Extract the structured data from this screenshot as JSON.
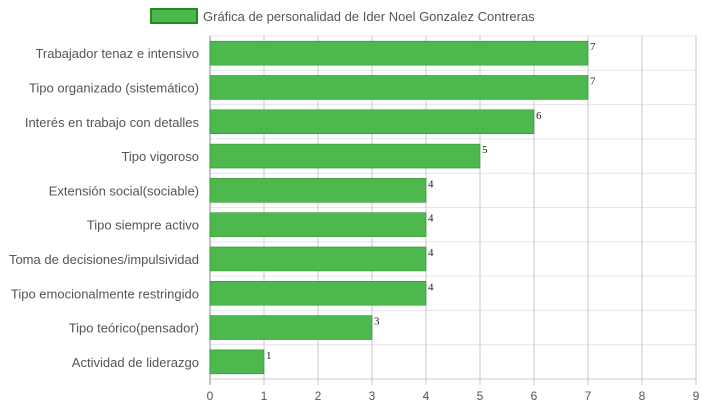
{
  "chart_data": {
    "type": "bar",
    "orientation": "horizontal",
    "categories": [
      "Trabajador tenaz e intensivo",
      "Tipo organizado (sistemático)",
      "Interés en trabajo con detalles",
      "Tipo vigoroso",
      "Extensión social(sociable)",
      "Tipo siempre activo",
      "Toma de decisiones/impulsividad",
      "Tipo emocionalmente restringido",
      "Tipo teórico(pensador)",
      "Actividad de liderazgo"
    ],
    "series": [
      {
        "name": "Gráfica de personalidad de Ider Noel Gonzalez Contreras",
        "values": [
          7,
          7,
          6,
          5,
          4,
          4,
          4,
          4,
          3,
          1
        ],
        "color": "#4db84d",
        "border_color": "#228b22"
      }
    ],
    "xlim": [
      0,
      9
    ],
    "xticks": [
      "0",
      "1",
      "2",
      "3",
      "4",
      "5",
      "6",
      "7",
      "8",
      "9"
    ],
    "grid": true,
    "legend_position": "top-center",
    "data_labels": true
  }
}
